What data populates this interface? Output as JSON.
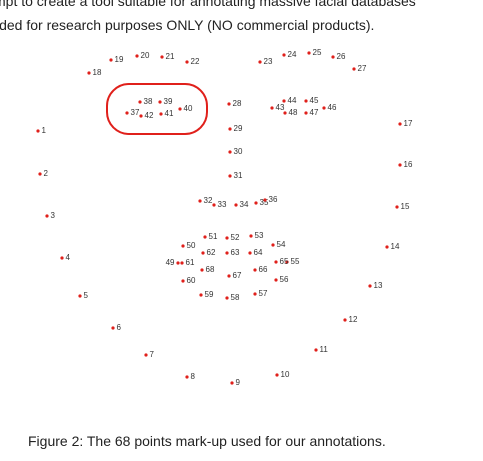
{
  "header": {
    "lines": [
      "mpt to create a tool suitable for annotating massive facial databases",
      "ided for research purposes ONLY (NO commercial products)."
    ]
  },
  "landmarks": [
    1,
    2,
    3,
    4,
    5,
    6,
    7,
    8,
    9,
    10,
    11,
    12,
    13,
    14,
    15,
    16,
    17,
    18,
    19,
    20,
    21,
    22,
    23,
    24,
    25,
    26,
    27,
    28,
    29,
    30,
    31,
    32,
    33,
    34,
    35,
    36,
    37,
    38,
    39,
    40,
    41,
    42,
    43,
    44,
    45,
    46,
    47,
    48,
    49,
    50,
    51,
    52,
    53,
    54,
    55,
    56,
    57,
    58,
    59,
    60,
    61,
    62,
    63,
    64,
    65,
    66,
    67,
    68
  ],
  "caption": "Figure 2: The 68 points mark-up used for our annotations."
}
